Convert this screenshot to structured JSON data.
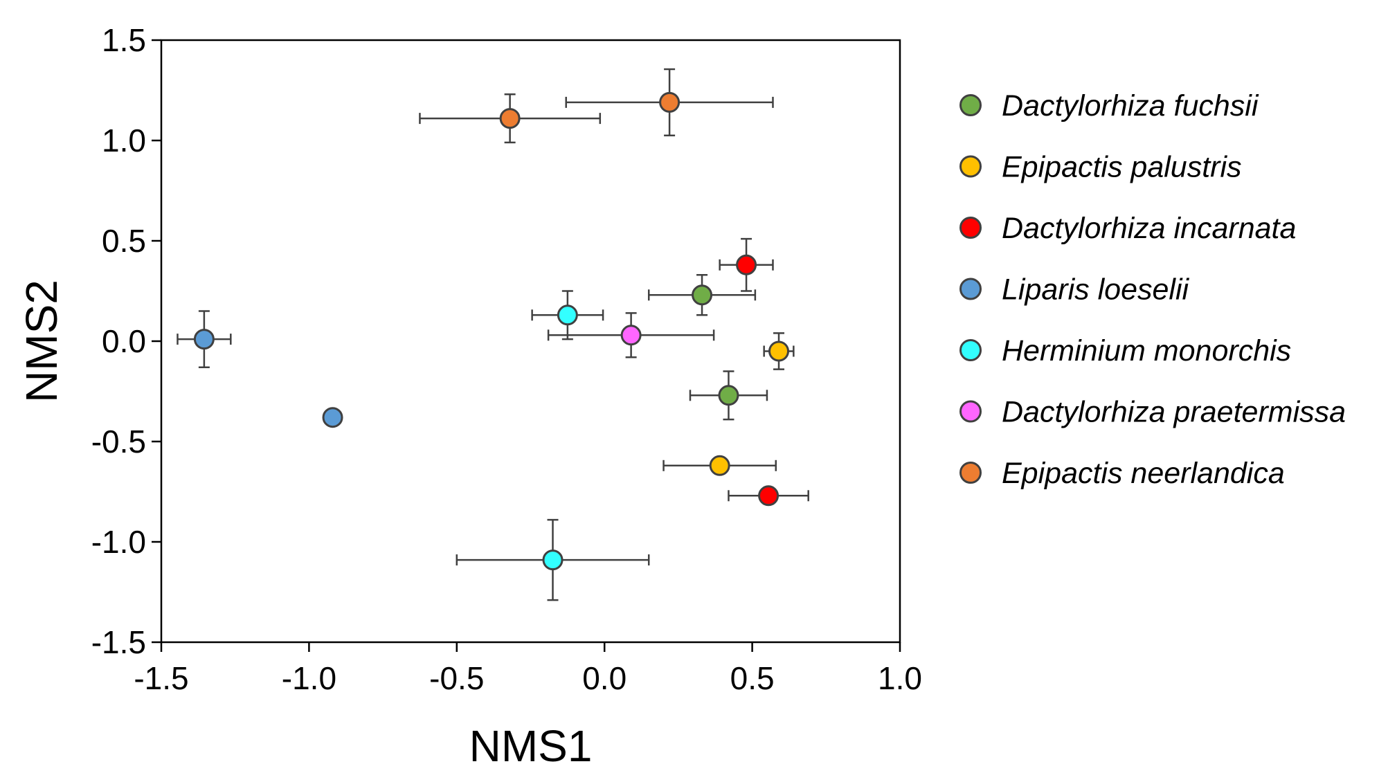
{
  "chart_data": {
    "type": "scatter",
    "title": "",
    "xlabel": "NMS1",
    "ylabel": "NMS2",
    "xlim": [
      -1.5,
      1.0
    ],
    "ylim": [
      -1.5,
      1.5
    ],
    "xticks": [
      -1.5,
      -1.0,
      -0.5,
      0.0,
      0.5,
      1.0
    ],
    "yticks": [
      -1.5,
      -1.0,
      -0.5,
      0.0,
      0.5,
      1.0,
      1.5
    ],
    "xtick_labels": [
      "-1.5",
      "-1.0",
      "-0.5",
      "0.0",
      "0.5",
      "1.0"
    ],
    "ytick_labels": [
      "-1.5",
      "-1.0",
      "-0.5",
      "0.0",
      "0.5",
      "1.0",
      "1.5"
    ],
    "grid": false,
    "legend_position": "right",
    "series": [
      {
        "name": "Dactylorhiza fuchsii",
        "color": "#70ad47",
        "points": [
          {
            "x": 0.33,
            "y": 0.23,
            "xerr": 0.18,
            "yerr": 0.1
          },
          {
            "x": 0.42,
            "y": -0.27,
            "xerr": 0.13,
            "yerr": 0.12
          }
        ]
      },
      {
        "name": "Epipactis palustris",
        "color": "#ffc000",
        "points": [
          {
            "x": 0.59,
            "y": -0.05,
            "xerr": 0.05,
            "yerr": 0.09
          },
          {
            "x": 0.39,
            "y": -0.62,
            "xerr": 0.19,
            "yerr": 0.0
          }
        ]
      },
      {
        "name": "Dactylorhiza incarnata",
        "color": "#ff0000",
        "points": [
          {
            "x": 0.48,
            "y": 0.38,
            "xerr": 0.09,
            "yerr": 0.13
          },
          {
            "x": 0.555,
            "y": -0.77,
            "xerr": 0.135,
            "yerr": 0.04
          }
        ]
      },
      {
        "name": "Liparis loeselii",
        "color": "#5b9bd5",
        "points": [
          {
            "x": -1.355,
            "y": 0.01,
            "xerr": 0.09,
            "yerr": 0.14
          },
          {
            "x": -0.92,
            "y": -0.38,
            "xerr": 0.0,
            "yerr": 0.0
          }
        ]
      },
      {
        "name": "Herminium monorchis",
        "color": "#33ffff",
        "points": [
          {
            "x": -0.125,
            "y": 0.13,
            "xerr": 0.12,
            "yerr": 0.12
          },
          {
            "x": -0.175,
            "y": -1.09,
            "xerr": 0.325,
            "yerr": 0.2
          }
        ]
      },
      {
        "name": "Dactylorhiza praetermissa",
        "color": "#ff66ff",
        "points": [
          {
            "x": 0.09,
            "y": 0.03,
            "xerr": 0.28,
            "yerr": 0.11
          }
        ]
      },
      {
        "name": "Epipactis neerlandica",
        "color": "#ed7d31",
        "points": [
          {
            "x": -0.32,
            "y": 1.11,
            "xerr": 0.305,
            "yerr": 0.12
          },
          {
            "x": 0.22,
            "y": 1.19,
            "xerr": 0.35,
            "yerr": 0.165
          }
        ]
      }
    ]
  }
}
